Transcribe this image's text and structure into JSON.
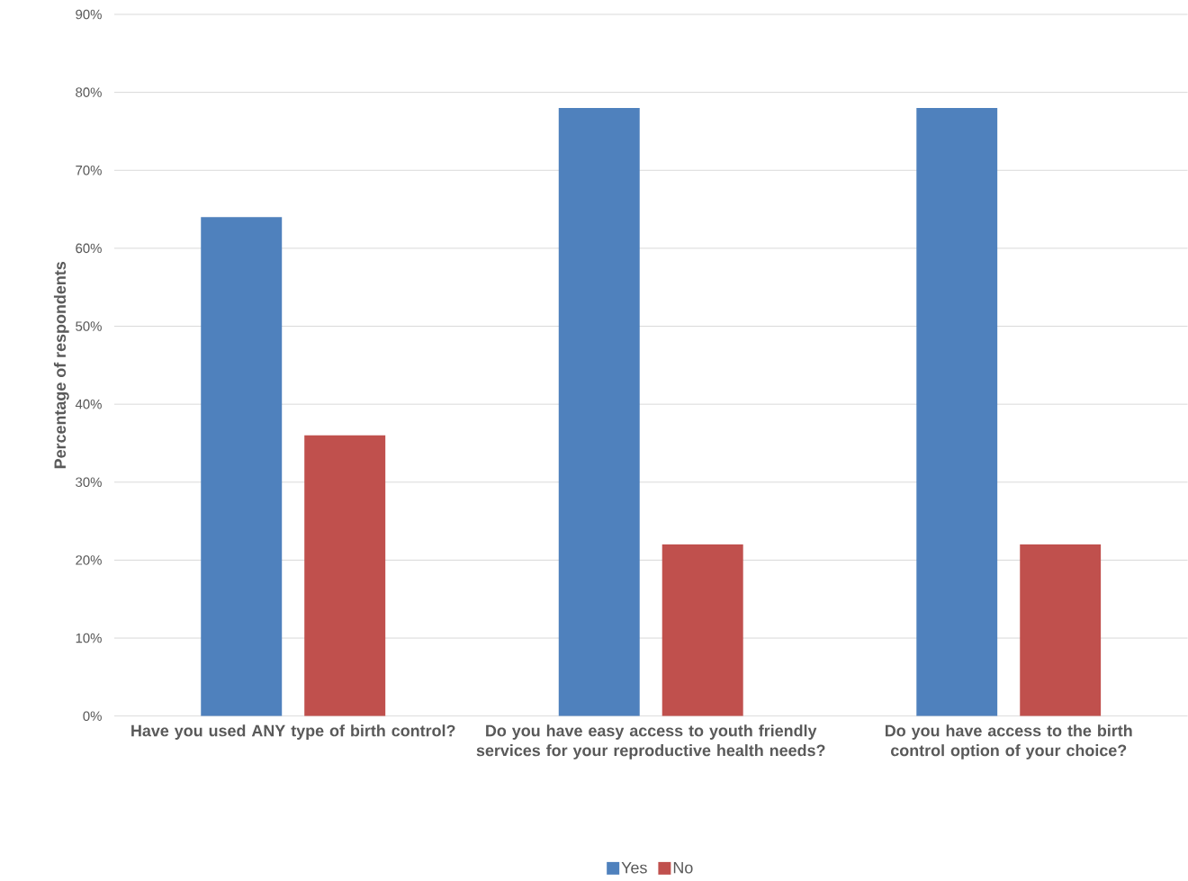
{
  "chart_data": {
    "type": "bar",
    "ylabel": "Percentage of respondents",
    "categories": [
      "Have you used ANY type of birth control?",
      "Do you have easy access to youth friendly services for your reproductive health needs?",
      "Do you have access to the birth control option of your choice?"
    ],
    "series": [
      {
        "name": "Yes",
        "color": "#4f81bd",
        "values": [
          64,
          78,
          78
        ]
      },
      {
        "name": "No",
        "color": "#c0504d",
        "values": [
          36,
          22,
          22
        ]
      }
    ],
    "ylim": [
      0,
      90
    ],
    "yticks": [
      {
        "value": 0,
        "label": "0%"
      },
      {
        "value": 10,
        "label": "10%"
      },
      {
        "value": 20,
        "label": "20%"
      },
      {
        "value": 30,
        "label": "30%"
      },
      {
        "value": 40,
        "label": "40%"
      },
      {
        "value": 50,
        "label": "50%"
      },
      {
        "value": 60,
        "label": "60%"
      },
      {
        "value": 70,
        "label": "70%"
      },
      {
        "value": 80,
        "label": "80%"
      },
      {
        "value": 90,
        "label": "90%"
      }
    ],
    "grid": "y",
    "legend": "bottom"
  }
}
